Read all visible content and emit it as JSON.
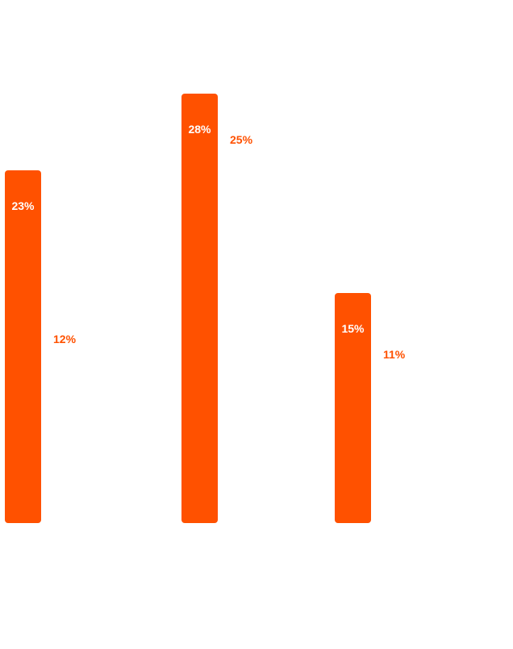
{
  "chart_data": {
    "type": "bar",
    "title": "",
    "xlabel": "",
    "ylabel": "",
    "ylim": [
      0,
      30
    ],
    "grid": false,
    "legend": "none",
    "colors": {
      "bar": "#FF5100",
      "bar_label": "#ffffff",
      "outside_label": "#FF5100"
    },
    "series": [
      {
        "values": [
          23,
          28,
          15
        ],
        "labels": [
          "23%",
          "28%",
          "15%"
        ],
        "style": "bar"
      },
      {
        "values": [
          12,
          25,
          11
        ],
        "labels": [
          "12%",
          "25%",
          "11%"
        ],
        "style": "label-only"
      }
    ]
  }
}
